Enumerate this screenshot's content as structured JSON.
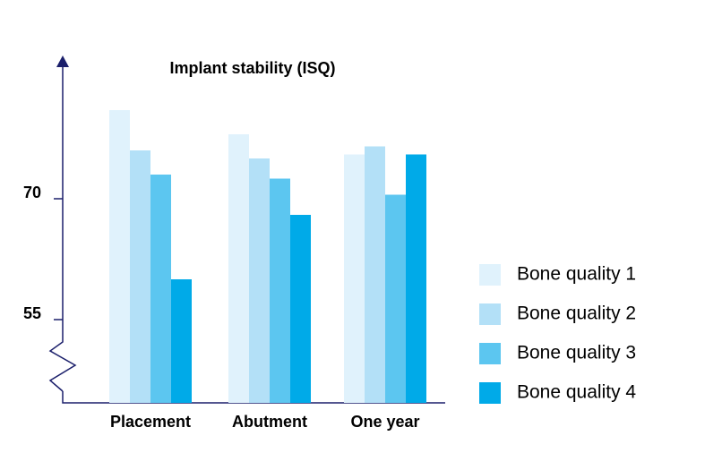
{
  "chart_data": {
    "type": "bar",
    "title": "Implant stability (ISQ)",
    "categories": [
      "Placement",
      "Abutment",
      "One year"
    ],
    "series": [
      {
        "name": "Bone quality 1",
        "color": "#e0f2fc",
        "values": [
          81,
          78,
          75.5
        ]
      },
      {
        "name": "Bone quality 2",
        "color": "#b3e0f7",
        "values": [
          76,
          75,
          76.5
        ]
      },
      {
        "name": "Bone quality 3",
        "color": "#5cc6f0",
        "values": [
          73,
          72.5,
          70.5
        ]
      },
      {
        "name": "Bone quality 4",
        "color": "#00aae8",
        "values": [
          60,
          68,
          75.5
        ]
      }
    ],
    "ylim": [
      44.5,
      88
    ],
    "yticks": [
      55,
      70
    ],
    "grid": false,
    "legend": "right"
  }
}
